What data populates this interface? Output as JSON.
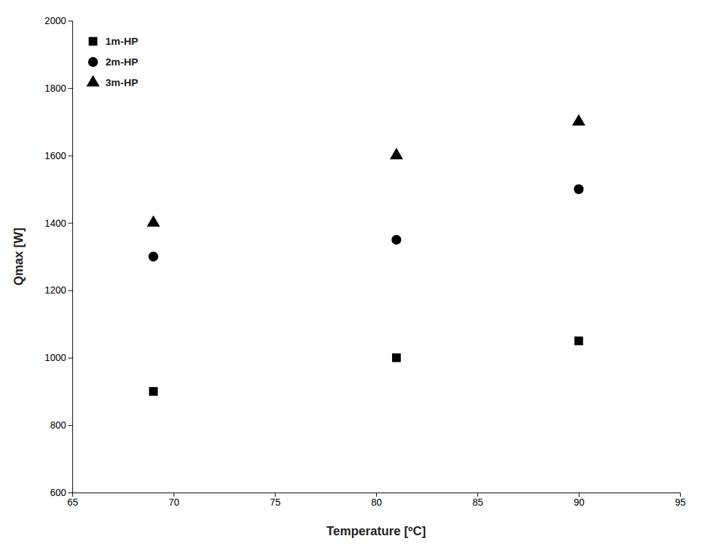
{
  "chart_data": {
    "type": "scatter",
    "xlabel": "Temperature [ºC]",
    "ylabel": "Qmax [W]",
    "x": [
      69,
      81,
      90
    ],
    "series": [
      {
        "name": "1m-HP",
        "marker": "square",
        "color": "black",
        "values": [
          900,
          1000,
          1050
        ]
      },
      {
        "name": "2m-HP",
        "marker": "circle",
        "color": "black",
        "values": [
          1300,
          1350,
          1500
        ]
      },
      {
        "name": "3m-HP",
        "marker": "triangle",
        "color": "black",
        "values": [
          1400,
          1600,
          1700
        ]
      }
    ],
    "xlim": [
      65,
      95
    ],
    "ylim": [
      600,
      2000
    ],
    "xticks": [
      65,
      70,
      75,
      80,
      85,
      90,
      95
    ],
    "yticks": [
      600,
      800,
      1000,
      1200,
      1400,
      1600,
      1800,
      2000
    ],
    "grid": false,
    "legend": "upper left"
  }
}
